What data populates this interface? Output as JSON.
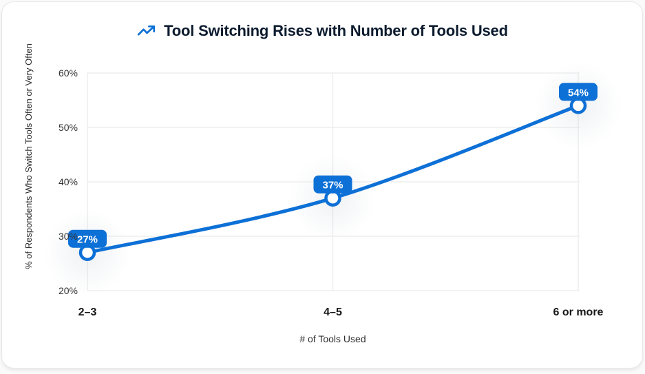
{
  "header": {
    "icon": "trending-up-icon"
  },
  "chart_data": {
    "type": "line",
    "title": "Tool Switching Rises with Number of Tools Used",
    "categories": [
      "2–3",
      "4–5",
      "6 or more"
    ],
    "values": [
      27,
      37,
      54
    ],
    "point_labels": [
      "27%",
      "37%",
      "54%"
    ],
    "xlabel": "# of Tools Used",
    "ylabel": "% of Respondents Who Switch Tools Often or Very Often",
    "y_tick_labels": [
      "20%",
      "30%",
      "40%",
      "50%",
      "60%"
    ],
    "y_tick_values": [
      20,
      30,
      40,
      50,
      60
    ],
    "ylim": [
      20,
      60
    ],
    "grid": true,
    "legend_position": "none",
    "marker_style": "open-circle",
    "colors": {
      "line": "#0d70d6",
      "badge_bg": "#0d70d6",
      "badge_text": "#ffffff",
      "marker_fill": "#ffffff",
      "grid": "#ebebeb",
      "title": "#0c1b2e",
      "x_tick": "#161616",
      "y_tick": "#333333",
      "axis_label": "#2e2e2e"
    }
  }
}
